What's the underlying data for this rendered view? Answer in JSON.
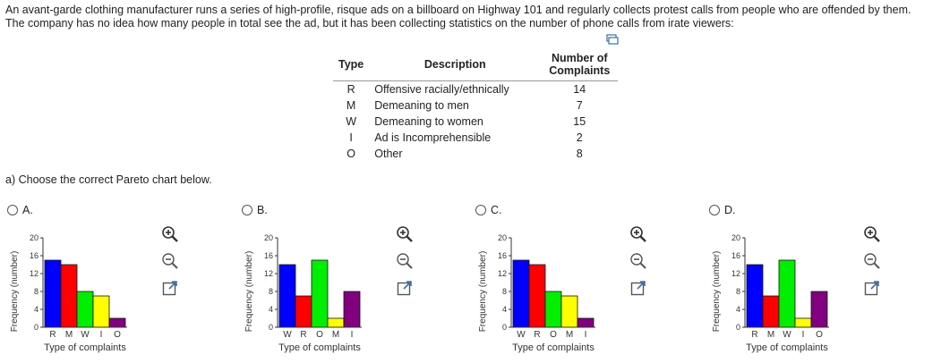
{
  "intro": {
    "text": "An avant-garde clothing manufacturer runs a series of high-profile, risque ads on a billboard on Highway 101 and regularly collects protest calls from people who are offended by them. The company has no idea how many people in total see the ad, but it has been collecting statistics on the number of phone calls from irate viewers:"
  },
  "table": {
    "headers": {
      "type": "Type",
      "description": "Description",
      "complaints_line1": "Number of",
      "complaints_line2": "Complaints"
    },
    "rows": [
      {
        "type": "R",
        "description": "Offensive racially/ethnically",
        "count": "14"
      },
      {
        "type": "M",
        "description": "Demeaning to men",
        "count": "7"
      },
      {
        "type": "W",
        "description": "Demeaning to women",
        "count": "15"
      },
      {
        "type": "I",
        "description": "Ad is Incomprehensible",
        "count": "2"
      },
      {
        "type": "O",
        "description": "Other",
        "count": "8"
      }
    ]
  },
  "question": {
    "text": "a) Choose the correct Pareto chart below."
  },
  "options": [
    {
      "label": "A."
    },
    {
      "label": "B."
    },
    {
      "label": "C."
    },
    {
      "label": "D."
    }
  ],
  "chart_data": [
    {
      "type": "bar",
      "title": "",
      "xlabel": "Type of complaints",
      "ylabel": "Frequency (number)",
      "ylim": [
        0,
        20
      ],
      "yticks": [
        "0",
        "4",
        "8",
        "12",
        "16",
        "20"
      ],
      "categories": [
        "R",
        "M",
        "W",
        "I",
        "O"
      ],
      "values": [
        15,
        14,
        8,
        7,
        2
      ],
      "colors": [
        "#0000ff",
        "#ff0000",
        "#00ee00",
        "#ffff00",
        "#800080"
      ]
    },
    {
      "type": "bar",
      "title": "",
      "xlabel": "Type of complaints",
      "ylabel": "Frequency (number)",
      "ylim": [
        0,
        20
      ],
      "yticks": [
        "0",
        "4",
        "8",
        "12",
        "16",
        "20"
      ],
      "categories": [
        "W",
        "R",
        "O",
        "M",
        "I"
      ],
      "values": [
        14,
        7,
        15,
        2,
        8
      ],
      "colors": [
        "#0000ff",
        "#ff0000",
        "#00ee00",
        "#ffff00",
        "#800080"
      ]
    },
    {
      "type": "bar",
      "title": "",
      "xlabel": "Type of complaints",
      "ylabel": "Frequency (number)",
      "ylim": [
        0,
        20
      ],
      "yticks": [
        "0",
        "4",
        "8",
        "12",
        "16",
        "20"
      ],
      "categories": [
        "W",
        "R",
        "O",
        "M",
        "I"
      ],
      "values": [
        15,
        14,
        8,
        7,
        2
      ],
      "colors": [
        "#0000ff",
        "#ff0000",
        "#00ee00",
        "#ffff00",
        "#800080"
      ]
    },
    {
      "type": "bar",
      "title": "",
      "xlabel": "Type of complaints",
      "ylabel": "Frequency (number)",
      "ylim": [
        0,
        20
      ],
      "yticks": [
        "0",
        "4",
        "8",
        "12",
        "16",
        "20"
      ],
      "categories": [
        "R",
        "M",
        "W",
        "I",
        "O"
      ],
      "values": [
        14,
        7,
        15,
        2,
        8
      ],
      "colors": [
        "#0000ff",
        "#ff0000",
        "#00ee00",
        "#ffff00",
        "#800080"
      ]
    }
  ],
  "icons": {
    "copy": "copy-icon",
    "zoom_in": "zoom-in-icon",
    "zoom_out": "zoom-out-icon",
    "popout": "popout-icon"
  }
}
